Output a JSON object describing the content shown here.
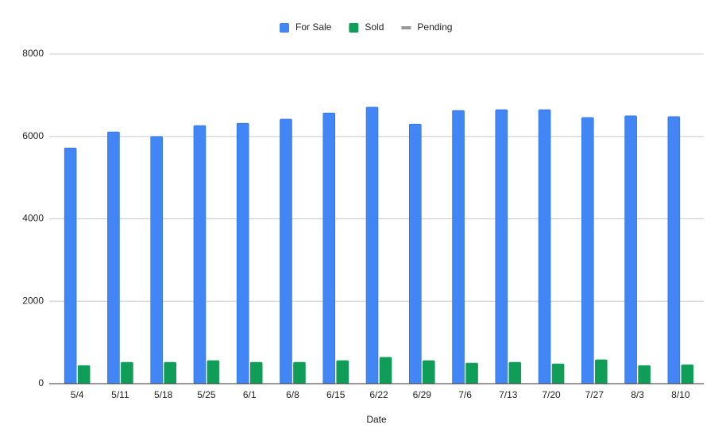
{
  "chart_data": {
    "type": "bar",
    "categories": [
      "5/4",
      "5/11",
      "5/18",
      "5/25",
      "6/1",
      "6/8",
      "6/15",
      "6/22",
      "6/29",
      "7/6",
      "7/13",
      "7/20",
      "7/27",
      "8/3",
      "8/10"
    ],
    "series": [
      {
        "name": "For Sale",
        "color": "#4285f4",
        "values": [
          5720,
          6110,
          6000,
          6265,
          6320,
          6420,
          6570,
          6710,
          6300,
          6630,
          6650,
          6650,
          6460,
          6500,
          6480
        ]
      },
      {
        "name": "Sold",
        "color": "#0f9d58",
        "values": [
          440,
          520,
          520,
          560,
          520,
          520,
          560,
          640,
          560,
          500,
          520,
          480,
          580,
          440,
          460
        ]
      },
      {
        "name": "Pending",
        "color": "#999999",
        "values": [
          null,
          null,
          null,
          null,
          null,
          null,
          null,
          null,
          null,
          null,
          null,
          null,
          null,
          null,
          null
        ]
      }
    ],
    "x_label": "Date",
    "ylim": [
      0,
      8000
    ],
    "yticks": [
      0,
      2000,
      4000,
      6000,
      8000
    ],
    "grid": true,
    "legend": "top"
  }
}
